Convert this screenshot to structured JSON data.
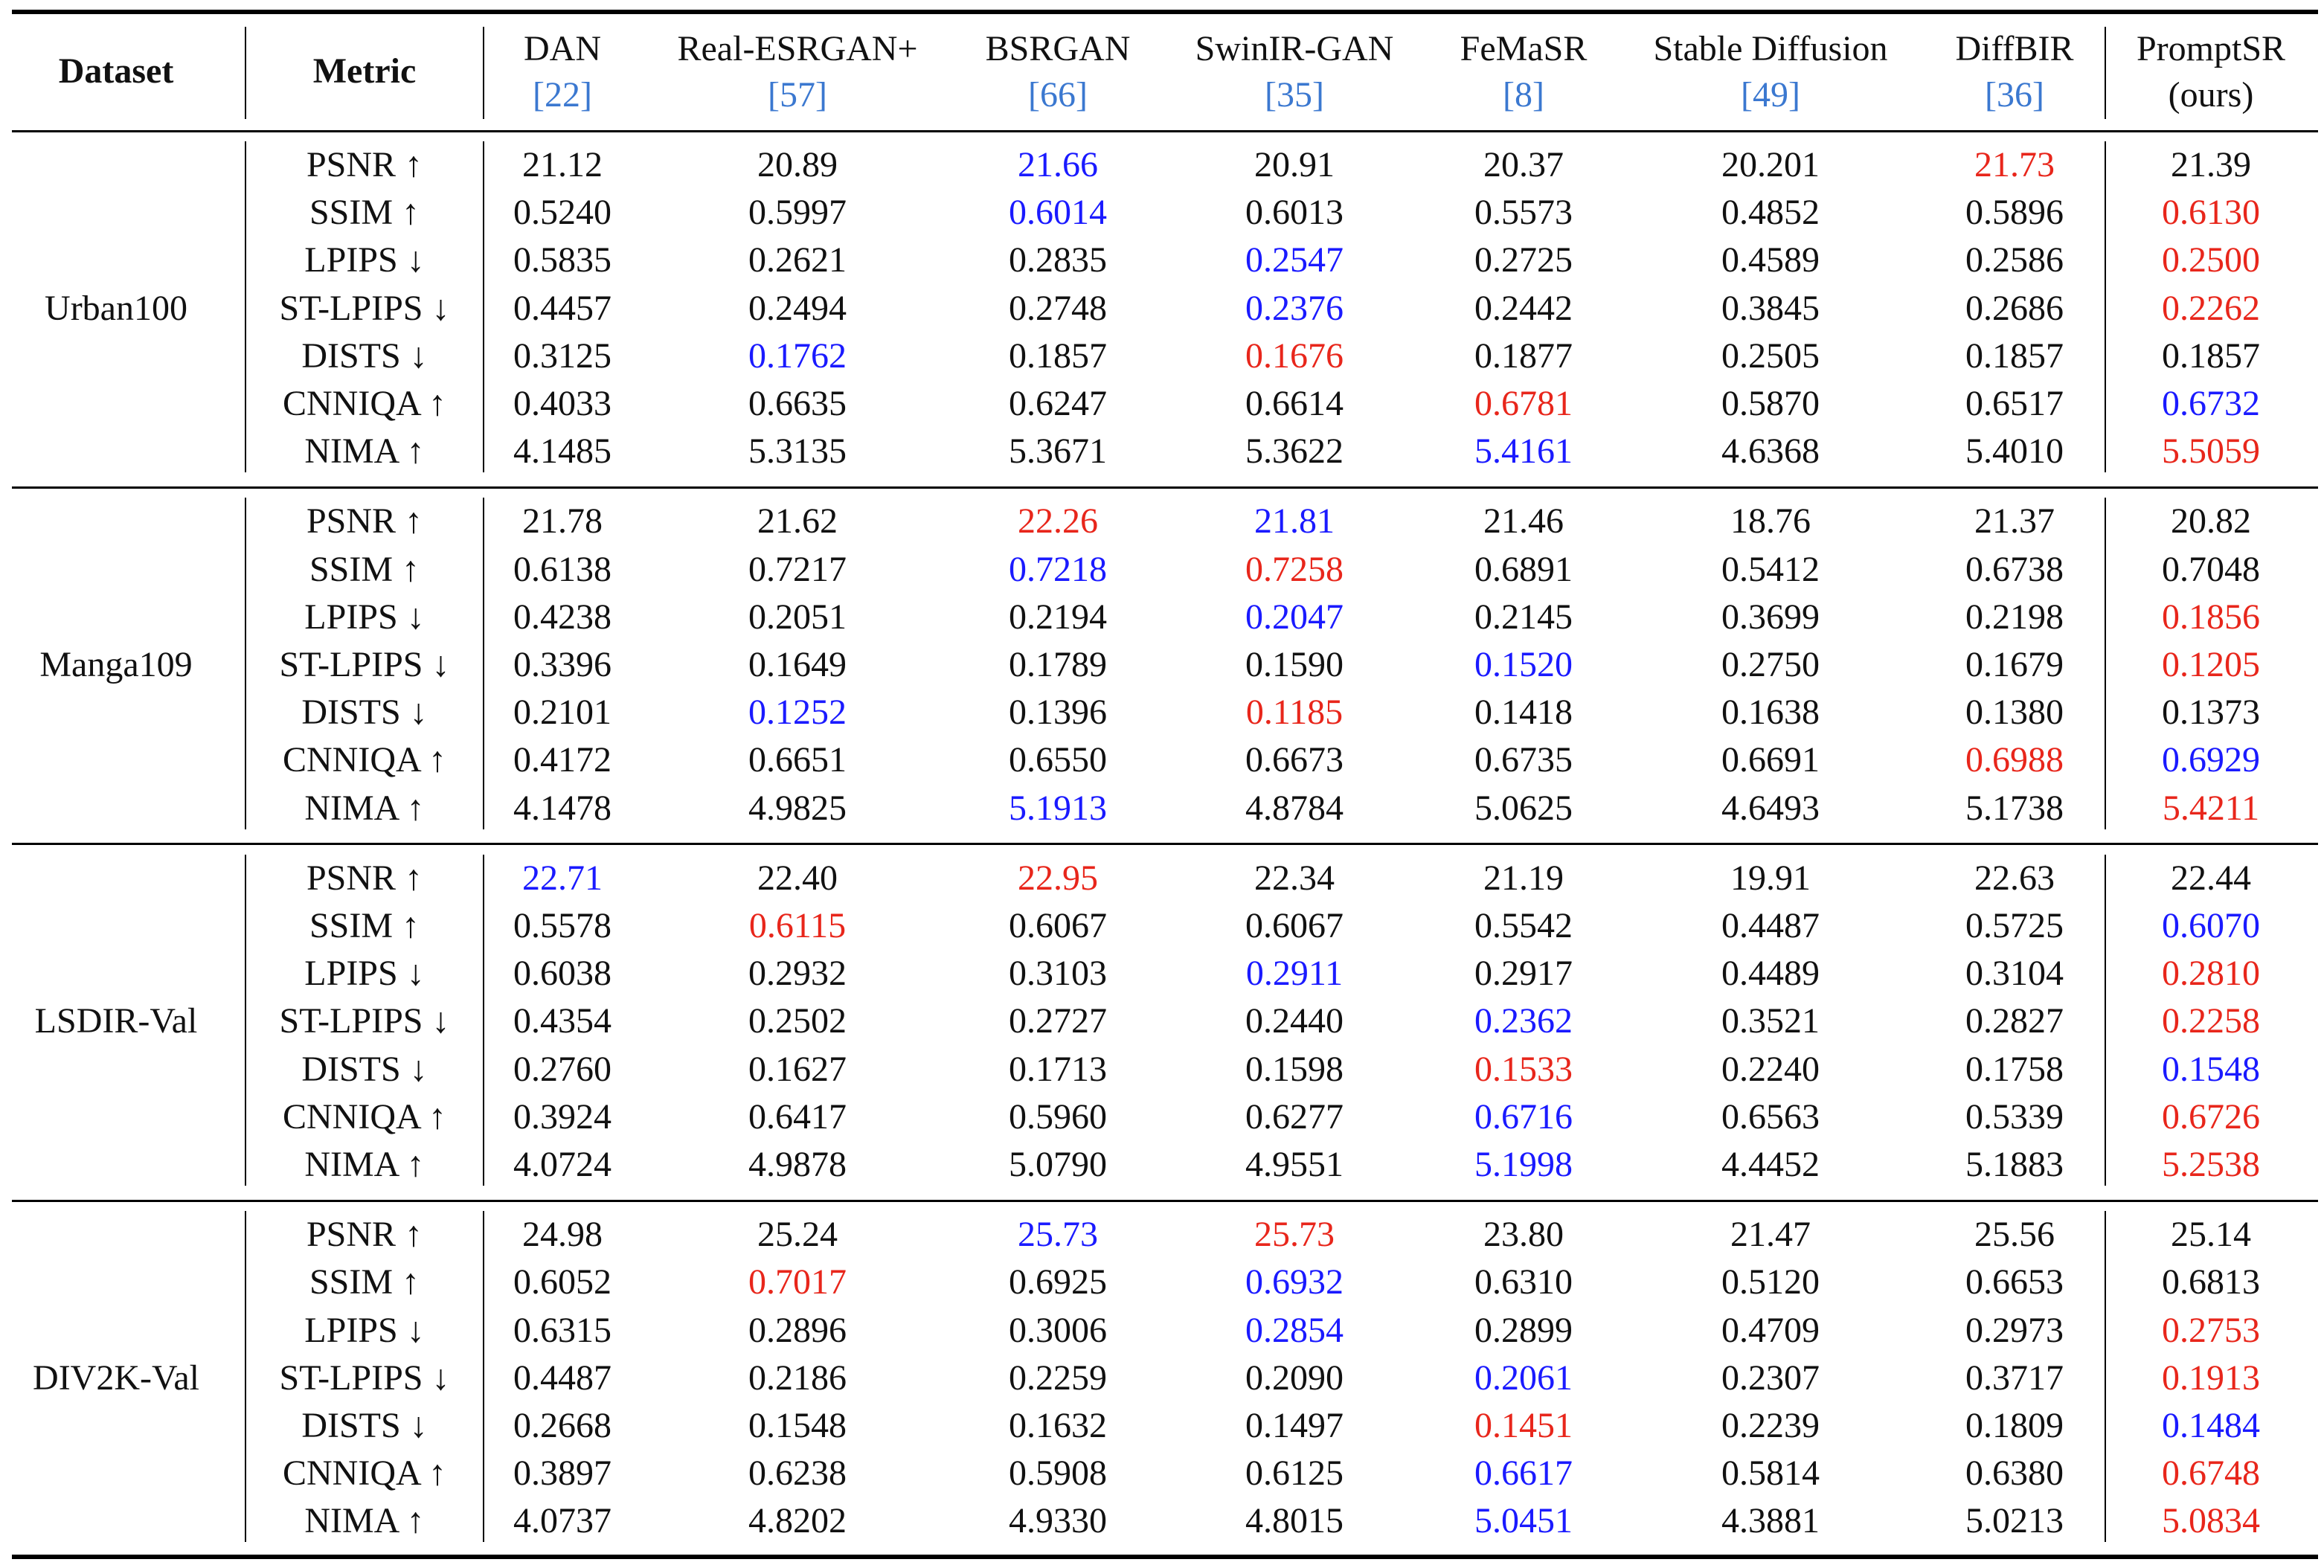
{
  "colors": {
    "red": "#e8261b",
    "blue": "#1a1aff",
    "ref": "#3b78d0"
  },
  "table": {
    "header": {
      "dataset": "Dataset",
      "metric": "Metric",
      "methods": [
        {
          "name": "DAN",
          "note": "[22]"
        },
        {
          "name": "Real-ESRGAN+",
          "note": "[57]"
        },
        {
          "name": "BSRGAN",
          "note": "[66]"
        },
        {
          "name": "SwinIR-GAN",
          "note": "[35]"
        },
        {
          "name": "FeMaSR",
          "note": "[8]"
        },
        {
          "name": "Stable Diffusion",
          "note": "[49]"
        },
        {
          "name": "DiffBIR",
          "note": "[36]"
        },
        {
          "name": "PromptSR",
          "note": "(ours)"
        }
      ]
    },
    "groups": [
      {
        "dataset": "Urban100",
        "rows": [
          {
            "metric": "PSNR ↑",
            "cells": [
              "21.12",
              "20.89",
              {
                "text": "21.66",
                "color": "blue"
              },
              "20.91",
              "20.37",
              "20.201",
              {
                "text": "21.73",
                "color": "red"
              },
              "21.39"
            ]
          },
          {
            "metric": "SSIM ↑",
            "cells": [
              "0.5240",
              "0.5997",
              {
                "text": "0.6014",
                "color": "blue"
              },
              "0.6013",
              "0.5573",
              "0.4852",
              "0.5896",
              {
                "text": "0.6130",
                "color": "red"
              }
            ]
          },
          {
            "metric": "LPIPS ↓",
            "cells": [
              "0.5835",
              "0.2621",
              "0.2835",
              {
                "text": "0.2547",
                "color": "blue"
              },
              "0.2725",
              "0.4589",
              "0.2586",
              {
                "text": "0.2500",
                "color": "red"
              }
            ]
          },
          {
            "metric": "ST-LPIPS ↓",
            "cells": [
              "0.4457",
              "0.2494",
              "0.2748",
              {
                "text": "0.2376",
                "color": "blue"
              },
              "0.2442",
              "0.3845",
              "0.2686",
              {
                "text": "0.2262",
                "color": "red"
              }
            ]
          },
          {
            "metric": "DISTS ↓",
            "cells": [
              "0.3125",
              {
                "text": "0.1762",
                "color": "blue"
              },
              "0.1857",
              {
                "text": "0.1676",
                "color": "red"
              },
              "0.1877",
              "0.2505",
              "0.1857",
              "0.1857"
            ]
          },
          {
            "metric": "CNNIQA ↑",
            "cells": [
              "0.4033",
              "0.6635",
              "0.6247",
              "0.6614",
              {
                "text": "0.6781",
                "color": "red"
              },
              "0.5870",
              "0.6517",
              {
                "text": "0.6732",
                "color": "blue"
              }
            ]
          },
          {
            "metric": "NIMA ↑",
            "cells": [
              "4.1485",
              "5.3135",
              "5.3671",
              "5.3622",
              {
                "text": "5.4161",
                "color": "blue"
              },
              "4.6368",
              "5.4010",
              {
                "text": "5.5059",
                "color": "red"
              }
            ]
          }
        ]
      },
      {
        "dataset": "Manga109",
        "rows": [
          {
            "metric": "PSNR ↑",
            "cells": [
              "21.78",
              "21.62",
              {
                "text": "22.26",
                "color": "red"
              },
              {
                "text": "21.81",
                "color": "blue"
              },
              "21.46",
              "18.76",
              "21.37",
              "20.82"
            ]
          },
          {
            "metric": "SSIM ↑",
            "cells": [
              "0.6138",
              "0.7217",
              {
                "text": "0.7218",
                "color": "blue"
              },
              {
                "text": "0.7258",
                "color": "red"
              },
              "0.6891",
              "0.5412",
              "0.6738",
              "0.7048"
            ]
          },
          {
            "metric": "LPIPS ↓",
            "cells": [
              "0.4238",
              "0.2051",
              "0.2194",
              {
                "text": "0.2047",
                "color": "blue"
              },
              "0.2145",
              "0.3699",
              "0.2198",
              {
                "text": "0.1856",
                "color": "red"
              }
            ]
          },
          {
            "metric": "ST-LPIPS ↓",
            "cells": [
              "0.3396",
              "0.1649",
              "0.1789",
              "0.1590",
              {
                "text": "0.1520",
                "color": "blue"
              },
              "0.2750",
              "0.1679",
              {
                "text": "0.1205",
                "color": "red"
              }
            ]
          },
          {
            "metric": "DISTS ↓",
            "cells": [
              "0.2101",
              {
                "text": "0.1252",
                "color": "blue"
              },
              "0.1396",
              {
                "text": "0.1185",
                "color": "red"
              },
              "0.1418",
              "0.1638",
              "0.1380",
              "0.1373"
            ]
          },
          {
            "metric": "CNNIQA ↑",
            "cells": [
              "0.4172",
              "0.6651",
              "0.6550",
              "0.6673",
              "0.6735",
              "0.6691",
              {
                "text": "0.6988",
                "color": "red"
              },
              {
                "text": "0.6929",
                "color": "blue"
              }
            ]
          },
          {
            "metric": "NIMA ↑",
            "cells": [
              "4.1478",
              "4.9825",
              {
                "text": "5.1913",
                "color": "blue"
              },
              "4.8784",
              "5.0625",
              "4.6493",
              "5.1738",
              {
                "text": "5.4211",
                "color": "red"
              }
            ]
          }
        ]
      },
      {
        "dataset": "LSDIR-Val",
        "rows": [
          {
            "metric": "PSNR ↑",
            "cells": [
              {
                "text": "22.71",
                "color": "blue"
              },
              "22.40",
              {
                "text": "22.95",
                "color": "red"
              },
              "22.34",
              "21.19",
              "19.91",
              "22.63",
              "22.44"
            ]
          },
          {
            "metric": "SSIM ↑",
            "cells": [
              "0.5578",
              {
                "text": "0.6115",
                "color": "red"
              },
              "0.6067",
              "0.6067",
              "0.5542",
              "0.4487",
              "0.5725",
              {
                "text": "0.6070",
                "color": "blue"
              }
            ]
          },
          {
            "metric": "LPIPS ↓",
            "cells": [
              "0.6038",
              "0.2932",
              "0.3103",
              {
                "text": "0.2911",
                "color": "blue"
              },
              "0.2917",
              "0.4489",
              "0.3104",
              {
                "text": "0.2810",
                "color": "red"
              }
            ]
          },
          {
            "metric": "ST-LPIPS ↓",
            "cells": [
              "0.4354",
              "0.2502",
              "0.2727",
              "0.2440",
              {
                "text": "0.2362",
                "color": "blue"
              },
              "0.3521",
              "0.2827",
              {
                "text": "0.2258",
                "color": "red"
              }
            ]
          },
          {
            "metric": "DISTS ↓",
            "cells": [
              "0.2760",
              "0.1627",
              "0.1713",
              "0.1598",
              {
                "text": "0.1533",
                "color": "red"
              },
              "0.2240",
              "0.1758",
              {
                "text": "0.1548",
                "color": "blue"
              }
            ]
          },
          {
            "metric": "CNNIQA ↑",
            "cells": [
              "0.3924",
              "0.6417",
              "0.5960",
              "0.6277",
              {
                "text": "0.6716",
                "color": "blue"
              },
              "0.6563",
              "0.5339",
              {
                "text": "0.6726",
                "color": "red"
              }
            ]
          },
          {
            "metric": "NIMA ↑",
            "cells": [
              "4.0724",
              "4.9878",
              "5.0790",
              "4.9551",
              {
                "text": "5.1998",
                "color": "blue"
              },
              "4.4452",
              "5.1883",
              {
                "text": "5.2538",
                "color": "red"
              }
            ]
          }
        ]
      },
      {
        "dataset": "DIV2K-Val",
        "rows": [
          {
            "metric": "PSNR ↑",
            "cells": [
              "24.98",
              "25.24",
              {
                "text": "25.73",
                "color": "blue"
              },
              {
                "text": "25.73",
                "color": "red"
              },
              "23.80",
              "21.47",
              "25.56",
              "25.14"
            ]
          },
          {
            "metric": "SSIM ↑",
            "cells": [
              "0.6052",
              {
                "text": "0.7017",
                "color": "red"
              },
              "0.6925",
              {
                "text": "0.6932",
                "color": "blue"
              },
              "0.6310",
              "0.5120",
              "0.6653",
              "0.6813"
            ]
          },
          {
            "metric": "LPIPS ↓",
            "cells": [
              "0.6315",
              "0.2896",
              "0.3006",
              {
                "text": "0.2854",
                "color": "blue"
              },
              "0.2899",
              "0.4709",
              "0.2973",
              {
                "text": "0.2753",
                "color": "red"
              }
            ]
          },
          {
            "metric": "ST-LPIPS ↓",
            "cells": [
              "0.4487",
              "0.2186",
              "0.2259",
              "0.2090",
              {
                "text": "0.2061",
                "color": "blue"
              },
              "0.2307",
              "0.3717",
              {
                "text": "0.1913",
                "color": "red"
              }
            ]
          },
          {
            "metric": "DISTS ↓",
            "cells": [
              "0.2668",
              "0.1548",
              "0.1632",
              "0.1497",
              {
                "text": "0.1451",
                "color": "red"
              },
              "0.2239",
              "0.1809",
              {
                "text": "0.1484",
                "color": "blue"
              }
            ]
          },
          {
            "metric": "CNNIQA ↑",
            "cells": [
              "0.3897",
              "0.6238",
              "0.5908",
              "0.6125",
              {
                "text": "0.6617",
                "color": "blue"
              },
              "0.5814",
              "0.6380",
              {
                "text": "0.6748",
                "color": "red"
              }
            ]
          },
          {
            "metric": "NIMA ↑",
            "cells": [
              "4.0737",
              "4.8202",
              "4.9330",
              "4.8015",
              {
                "text": "5.0451",
                "color": "blue"
              },
              "4.3881",
              "5.0213",
              {
                "text": "5.0834",
                "color": "red"
              }
            ]
          }
        ]
      }
    ]
  }
}
